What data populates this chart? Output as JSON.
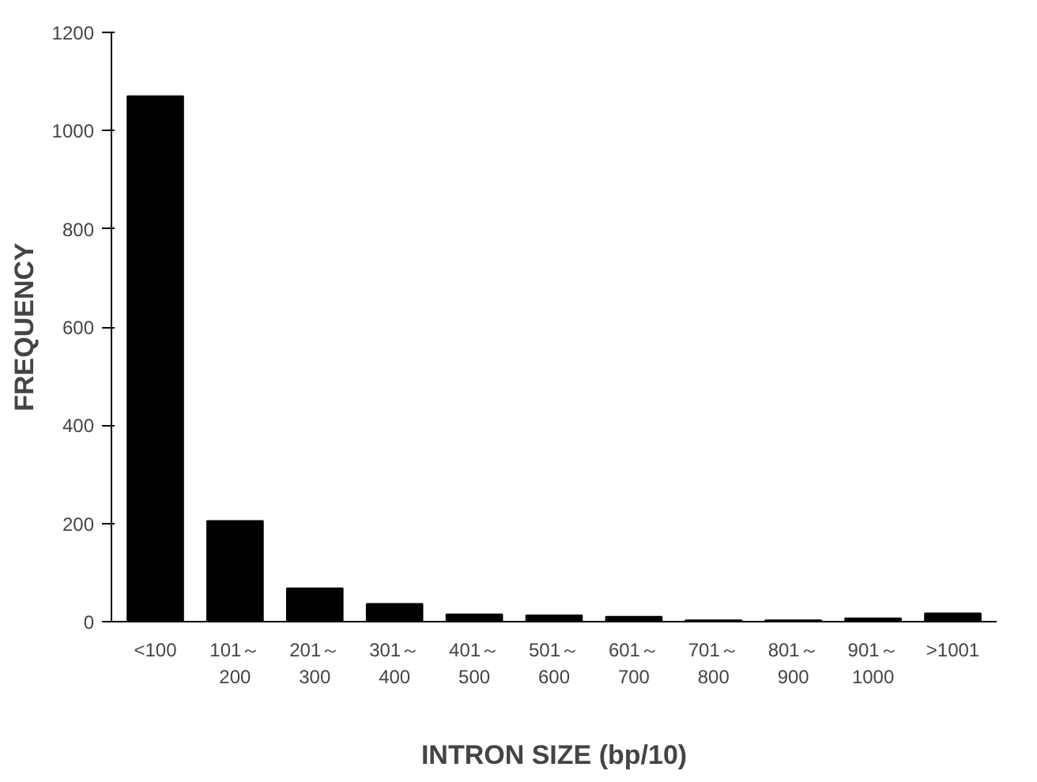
{
  "chart_data": {
    "type": "bar",
    "xlabel": "INTRON SIZE (bp/10)",
    "ylabel": "FREQUENCY",
    "categories": [
      "<100",
      "101～\n200",
      "201～\n300",
      "301～\n400",
      "401～\n500",
      "501～\n600",
      "601～\n700",
      "701～\n800",
      "801～\n900",
      "901～\n1000",
      ">1001"
    ],
    "values": [
      1070,
      205,
      68,
      36,
      15,
      13,
      10,
      3,
      3,
      7,
      17
    ],
    "color": "#000000",
    "ylim": [
      0,
      1200
    ],
    "yticks": [
      0,
      200,
      400,
      600,
      800,
      1000,
      1200
    ],
    "grid": false
  }
}
